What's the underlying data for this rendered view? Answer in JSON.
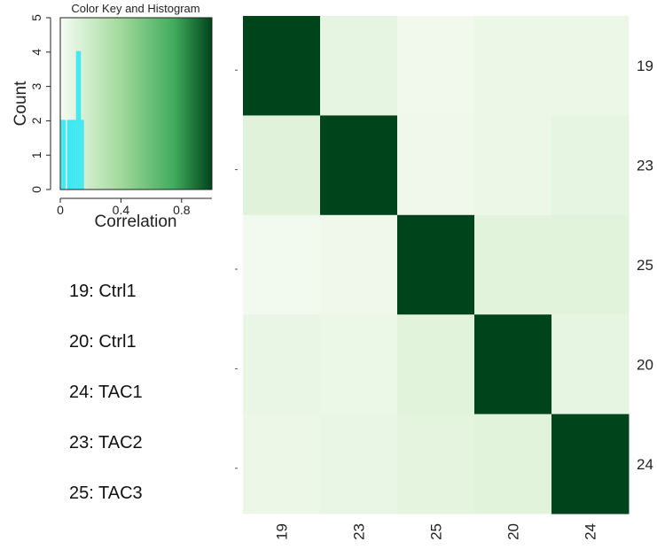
{
  "chart_data": [
    {
      "type": "heatmap",
      "rows": [
        "19",
        "23",
        "25",
        "20",
        "24"
      ],
      "columns": [
        "19",
        "23",
        "25",
        "20",
        "24"
      ],
      "values": [
        [
          1.0,
          0.12,
          0.05,
          0.08,
          0.08
        ],
        [
          0.15,
          1.0,
          0.06,
          0.08,
          0.12
        ],
        [
          0.04,
          0.06,
          1.0,
          0.14,
          0.14
        ],
        [
          0.1,
          0.09,
          0.14,
          1.0,
          0.12
        ],
        [
          0.08,
          0.1,
          0.13,
          0.14,
          1.0
        ]
      ],
      "color_low": "#f7fcf5",
      "color_high": "#00441b"
    },
    {
      "type": "bar",
      "title": "Color Key and Histogram",
      "xlabel": "Correlation",
      "ylabel": "Count",
      "xlim": [
        0,
        1
      ],
      "ylim": [
        0,
        5
      ],
      "x_ticks": [
        "0",
        "0.4",
        "0.8"
      ],
      "x_tick_values": [
        0,
        0.4,
        0.8
      ],
      "y_ticks": [
        "0",
        "1",
        "2",
        "3",
        "4",
        "5"
      ],
      "y_tick_values": [
        0,
        1,
        2,
        3,
        4,
        5
      ],
      "x": [
        0.02,
        0.06,
        0.08,
        0.1,
        0.12,
        0.14
      ],
      "values": [
        2,
        2,
        2,
        2,
        4,
        2
      ],
      "trace_color": "#3ee8f2"
    }
  ],
  "sample_key": [
    "19: Ctrl1",
    "20: Ctrl1",
    "24: TAC1",
    "23: TAC2",
    "25: TAC3"
  ]
}
